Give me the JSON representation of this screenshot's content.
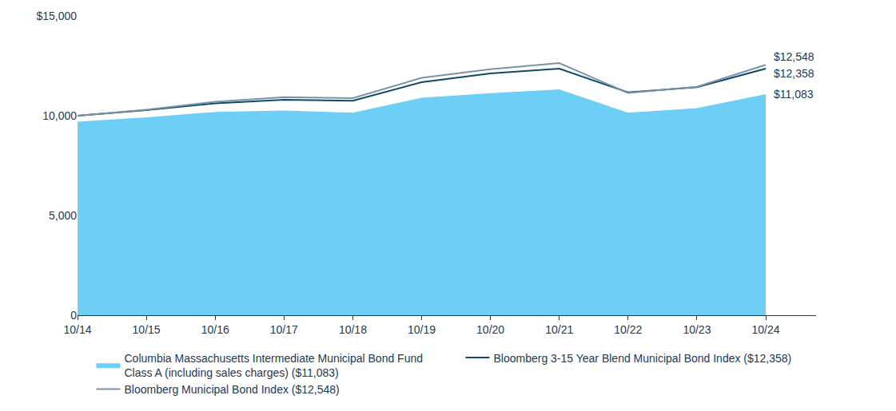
{
  "chart_data": {
    "type": "line",
    "categories": [
      "10/14",
      "10/15",
      "10/16",
      "10/17",
      "10/18",
      "10/19",
      "10/20",
      "10/21",
      "10/22",
      "10/23",
      "10/24"
    ],
    "series": [
      {
        "name": "Columbia Massachusetts Intermediate Municipal Bond Fund Class A (including sales charges) ($11,083)",
        "type": "area",
        "color": "#6dcff6",
        "values": [
          9700,
          9925,
          10190,
          10260,
          10150,
          10900,
          11130,
          11320,
          10150,
          10380,
          11083
        ]
      },
      {
        "name": "Bloomberg 3-15 Year Blend Municipal Bond Index ($12,358)",
        "type": "line",
        "color": "#0f4868",
        "values": [
          10000,
          10280,
          10620,
          10800,
          10750,
          11680,
          12120,
          12360,
          11170,
          11430,
          12358
        ]
      },
      {
        "name": "Bloomberg Municipal Bond Index ($12,548)",
        "type": "line",
        "color": "#7a93a8",
        "values": [
          10000,
          10300,
          10700,
          10930,
          10880,
          11900,
          12330,
          12640,
          11140,
          11450,
          12548
        ]
      }
    ],
    "ylim": [
      0,
      15000
    ],
    "yticks": [
      0,
      {
        "value": 5000,
        "label": "5,000"
      },
      {
        "value": 10000,
        "label": "10,000"
      },
      {
        "value": 15000,
        "label": "$15,000"
      }
    ],
    "grid": false,
    "legend": "bottom",
    "annotations": [
      {
        "text": "$12,548",
        "x": "10/24",
        "y": 12548
      },
      {
        "text": "$12,358",
        "x": "10/24",
        "y": 12358
      },
      {
        "text": "$11,083",
        "x": "10/24",
        "y": 11083
      }
    ]
  }
}
